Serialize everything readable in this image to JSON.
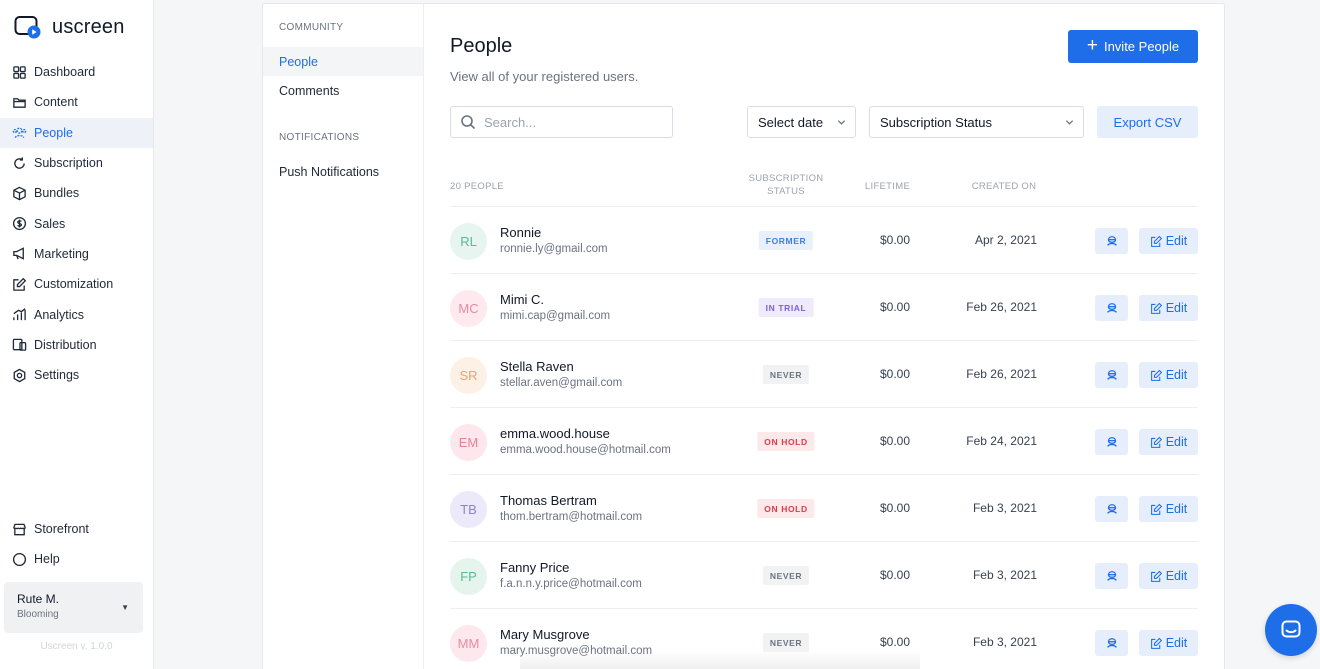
{
  "brand": {
    "name": "uscreen"
  },
  "sidebar": {
    "items": [
      {
        "label": "Dashboard",
        "icon": "dashboard-icon"
      },
      {
        "label": "Content",
        "icon": "folder-icon"
      },
      {
        "label": "People",
        "icon": "people-icon",
        "active": true
      },
      {
        "label": "Subscription",
        "icon": "refresh-icon"
      },
      {
        "label": "Bundles",
        "icon": "box-icon"
      },
      {
        "label": "Sales",
        "icon": "dollar-icon"
      },
      {
        "label": "Marketing",
        "icon": "megaphone-icon"
      },
      {
        "label": "Customization",
        "icon": "edit-square-icon"
      },
      {
        "label": "Analytics",
        "icon": "chart-icon"
      },
      {
        "label": "Distribution",
        "icon": "devices-icon"
      },
      {
        "label": "Settings",
        "icon": "gear-icon"
      }
    ],
    "bottom_items": [
      {
        "label": "Storefront",
        "icon": "storefront-icon"
      },
      {
        "label": "Help",
        "icon": "help-icon"
      }
    ],
    "user": {
      "name": "Rute M.",
      "plan": "Blooming"
    },
    "version": "Uscreen v. 1.0.0"
  },
  "subnav": {
    "community_heading": "COMMUNITY",
    "community_items": [
      "People",
      "Comments"
    ],
    "notifications_heading": "NOTIFICATIONS",
    "notifications_items": [
      "Push Notifications"
    ]
  },
  "main": {
    "title": "People",
    "subtitle": "View all of your registered users.",
    "invite_label": "Invite People",
    "search_placeholder": "Search...",
    "date_select": "Select date",
    "status_select": "Subscription Status",
    "export_label": "Export CSV",
    "columns": {
      "people_count": "20 PEOPLE",
      "status_line1": "SUBSCRIPTION",
      "status_line2": "STATUS",
      "lifetime": "LIFETIME",
      "created": "CREATED ON"
    },
    "edit_label": "Edit",
    "rows": [
      {
        "initials": "RL",
        "name": "Ronnie",
        "email": "ronnie.ly@gmail.com",
        "status": "FORMER",
        "lifetime": "$0.00",
        "created": "Apr 2, 2021",
        "avatar_bg": "#e6f5ef",
        "avatar_fg": "#5fb894",
        "badge_bg": "#e8f0fc",
        "badge_fg": "#3b7fe6"
      },
      {
        "initials": "MC",
        "name": "Mimi C.",
        "email": "mimi.cap@gmail.com",
        "status": "IN TRIAL",
        "lifetime": "$0.00",
        "created": "Feb 26, 2021",
        "avatar_bg": "#fde9ee",
        "avatar_fg": "#e88aa1",
        "badge_bg": "#efeafc",
        "badge_fg": "#7b61d8"
      },
      {
        "initials": "SR",
        "name": "Stella Raven",
        "email": "stellar.aven@gmail.com",
        "status": "NEVER",
        "lifetime": "$0.00",
        "created": "Feb 26, 2021",
        "avatar_bg": "#fdf0e4",
        "avatar_fg": "#eea36b",
        "badge_bg": "#f1f2f4",
        "badge_fg": "#6b7280"
      },
      {
        "initials": "EM",
        "name": "emma.wood.house",
        "email": "emma.wood.house@hotmail.com",
        "status": "ON HOLD",
        "lifetime": "$0.00",
        "created": "Feb 24, 2021",
        "avatar_bg": "#fde7ec",
        "avatar_fg": "#e9809b",
        "badge_bg": "#fde8ea",
        "badge_fg": "#e03a4e"
      },
      {
        "initials": "TB",
        "name": "Thomas Bertram",
        "email": "thom.bertram@hotmail.com",
        "status": "ON HOLD",
        "lifetime": "$0.00",
        "created": "Feb 3, 2021",
        "avatar_bg": "#ece9fb",
        "avatar_fg": "#8f82dd",
        "badge_bg": "#fde8ea",
        "badge_fg": "#e03a4e"
      },
      {
        "initials": "FP",
        "name": "Fanny Price",
        "email": "f.a.n.n.y.price@hotmail.com",
        "status": "NEVER",
        "lifetime": "$0.00",
        "created": "Feb 3, 2021",
        "avatar_bg": "#e5f5ee",
        "avatar_fg": "#5db892",
        "badge_bg": "#f1f2f4",
        "badge_fg": "#6b7280"
      },
      {
        "initials": "MM",
        "name": "Mary Musgrove",
        "email": "mary.musgrove@hotmail.com",
        "status": "NEVER",
        "lifetime": "$0.00",
        "created": "Feb 3, 2021",
        "avatar_bg": "#fde8ed",
        "avatar_fg": "#e88ba2",
        "badge_bg": "#f1f2f4",
        "badge_fg": "#6b7280"
      }
    ]
  },
  "colors": {
    "accent": "#1d6ee8",
    "accent_light": "#e6eefb"
  }
}
